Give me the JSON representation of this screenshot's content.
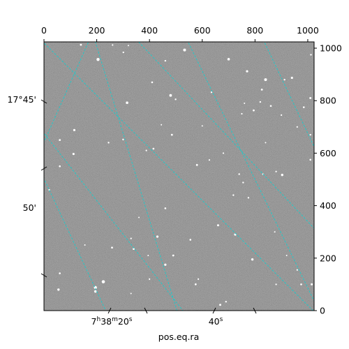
{
  "chart_data": {
    "type": "image",
    "title": "",
    "image_description": "grayscale astronomical star field with cyan dashed RA/Dec coordinate grid",
    "pixel_axes": {
      "x_range": [
        0,
        1024
      ],
      "y_range": [
        0,
        1024
      ],
      "top_ticks": [
        0,
        200,
        400,
        600,
        800,
        1000
      ],
      "right_ticks": [
        0,
        200,
        400,
        600,
        800,
        1000
      ]
    },
    "world_axes": {
      "xlabel": "pos.eq.ra",
      "ra_ticks": [
        {
          "label": "7h38m20s",
          "h": "7",
          "m": "38",
          "s": "20"
        },
        {
          "label": "40s",
          "s": "40"
        }
      ],
      "dec_ticks": [
        {
          "label": "17°45'"
        },
        {
          "label": "50'"
        }
      ]
    },
    "grid": {
      "on": true,
      "color": "#22c8c8",
      "style": "dashed"
    },
    "stars": [
      {
        "x": 205,
        "y": 957,
        "r": 2.2
      },
      {
        "x": 140,
        "y": 1013,
        "r": 1.4
      },
      {
        "x": 301,
        "y": 984,
        "r": 1.2
      },
      {
        "x": 533,
        "y": 993,
        "r": 2.0
      },
      {
        "x": 460,
        "y": 952,
        "r": 1.2
      },
      {
        "x": 700,
        "y": 958,
        "r": 1.8
      },
      {
        "x": 770,
        "y": 912,
        "r": 1.6
      },
      {
        "x": 840,
        "y": 880,
        "r": 2.0
      },
      {
        "x": 826,
        "y": 842,
        "r": 1.4
      },
      {
        "x": 820,
        "y": 795,
        "r": 1.2
      },
      {
        "x": 795,
        "y": 763,
        "r": 1.4
      },
      {
        "x": 860,
        "y": 780,
        "r": 1.3
      },
      {
        "x": 940,
        "y": 887,
        "r": 1.6
      },
      {
        "x": 1010,
        "y": 810,
        "r": 1.5
      },
      {
        "x": 760,
        "y": 790,
        "r": 1.0
      },
      {
        "x": 635,
        "y": 832,
        "r": 1.2
      },
      {
        "x": 480,
        "y": 820,
        "r": 1.9
      },
      {
        "x": 499,
        "y": 805,
        "r": 1.2
      },
      {
        "x": 410,
        "y": 870,
        "r": 1.3
      },
      {
        "x": 315,
        "y": 792,
        "r": 1.8
      },
      {
        "x": 600,
        "y": 704,
        "r": 1.0
      },
      {
        "x": 485,
        "y": 670,
        "r": 1.4
      },
      {
        "x": 445,
        "y": 708,
        "r": 1.0
      },
      {
        "x": 415,
        "y": 617,
        "r": 1.3
      },
      {
        "x": 388,
        "y": 610,
        "r": 1.1
      },
      {
        "x": 300,
        "y": 652,
        "r": 1.2
      },
      {
        "x": 245,
        "y": 640,
        "r": 1.2
      },
      {
        "x": 115,
        "y": 688,
        "r": 1.6
      },
      {
        "x": 60,
        "y": 650,
        "r": 1.4
      },
      {
        "x": 112,
        "y": 597,
        "r": 1.6
      },
      {
        "x": 60,
        "y": 550,
        "r": 1.3
      },
      {
        "x": 20,
        "y": 460,
        "r": 1.2
      },
      {
        "x": 580,
        "y": 555,
        "r": 1.4
      },
      {
        "x": 627,
        "y": 574,
        "r": 1.1
      },
      {
        "x": 680,
        "y": 600,
        "r": 1.1
      },
      {
        "x": 740,
        "y": 520,
        "r": 1.2
      },
      {
        "x": 755,
        "y": 488,
        "r": 1.2
      },
      {
        "x": 718,
        "y": 440,
        "r": 1.2
      },
      {
        "x": 830,
        "y": 520,
        "r": 1.1
      },
      {
        "x": 880,
        "y": 530,
        "r": 1.1
      },
      {
        "x": 903,
        "y": 517,
        "r": 1.7
      },
      {
        "x": 750,
        "y": 750,
        "r": 1.1
      },
      {
        "x": 900,
        "y": 745,
        "r": 1.1
      },
      {
        "x": 985,
        "y": 775,
        "r": 1.3
      },
      {
        "x": 1010,
        "y": 670,
        "r": 1.2
      },
      {
        "x": 1010,
        "y": 575,
        "r": 1.3
      },
      {
        "x": 960,
        "y": 700,
        "r": 1.1
      },
      {
        "x": 775,
        "y": 430,
        "r": 1.2
      },
      {
        "x": 660,
        "y": 325,
        "r": 1.5
      },
      {
        "x": 725,
        "y": 290,
        "r": 1.6
      },
      {
        "x": 555,
        "y": 270,
        "r": 1.3
      },
      {
        "x": 430,
        "y": 282,
        "r": 1.6
      },
      {
        "x": 340,
        "y": 235,
        "r": 1.4
      },
      {
        "x": 258,
        "y": 240,
        "r": 1.4
      },
      {
        "x": 330,
        "y": 275,
        "r": 1.1
      },
      {
        "x": 490,
        "y": 210,
        "r": 1.4
      },
      {
        "x": 460,
        "y": 175,
        "r": 1.6
      },
      {
        "x": 790,
        "y": 195,
        "r": 1.7
      },
      {
        "x": 920,
        "y": 210,
        "r": 1.0
      },
      {
        "x": 960,
        "y": 155,
        "r": 1.1
      },
      {
        "x": 975,
        "y": 100,
        "r": 1.3
      },
      {
        "x": 575,
        "y": 100,
        "r": 1.4
      },
      {
        "x": 400,
        "y": 120,
        "r": 1.1
      },
      {
        "x": 225,
        "y": 110,
        "r": 2.3
      },
      {
        "x": 195,
        "y": 88,
        "r": 2.2
      },
      {
        "x": 195,
        "y": 73,
        "r": 1.8
      },
      {
        "x": 60,
        "y": 142,
        "r": 1.3
      },
      {
        "x": 55,
        "y": 80,
        "r": 1.7
      },
      {
        "x": 330,
        "y": 65,
        "r": 1.0
      },
      {
        "x": 668,
        "y": 22,
        "r": 1.5
      },
      {
        "x": 690,
        "y": 34,
        "r": 1.2
      },
      {
        "x": 1015,
        "y": 100,
        "r": 1.5
      },
      {
        "x": 395,
        "y": 210,
        "r": 1.0
      },
      {
        "x": 460,
        "y": 390,
        "r": 1.3
      },
      {
        "x": 155,
        "y": 250,
        "r": 1.0
      },
      {
        "x": 840,
        "y": 640,
        "r": 1.0
      },
      {
        "x": 1012,
        "y": 975,
        "r": 1.2
      },
      {
        "x": 912,
        "y": 880,
        "r": 1.2
      },
      {
        "x": 585,
        "y": 120,
        "r": 1.1
      },
      {
        "x": 360,
        "y": 355,
        "r": 1.0
      },
      {
        "x": 880,
        "y": 100,
        "r": 1.1
      },
      {
        "x": 875,
        "y": 300,
        "r": 1.0
      },
      {
        "x": 320,
        "y": 1010,
        "r": 1.0
      },
      {
        "x": 260,
        "y": 1012,
        "r": 1.1
      }
    ],
    "grid_lines": {
      "ra": [
        {
          "x1": -120,
          "y1": 760,
          "x2": 290,
          "y2": -120
        },
        {
          "x1": 160,
          "y1": 1140,
          "x2": 540,
          "y2": -120
        },
        {
          "x1": 490,
          "y1": 1140,
          "x2": 1100,
          "y2": -120
        },
        {
          "x1": 780,
          "y1": 1140,
          "x2": 1140,
          "y2": 380
        }
      ],
      "dec": [
        {
          "x1": -120,
          "y1": 370,
          "x2": 220,
          "y2": 1140
        },
        {
          "x1": -120,
          "y1": 830,
          "x2": 620,
          "y2": -120
        },
        {
          "x1": -120,
          "y1": 1140,
          "x2": 1140,
          "y2": -120
        },
        {
          "x1": 250,
          "y1": 1140,
          "x2": 1140,
          "y2": 190
        }
      ]
    }
  }
}
